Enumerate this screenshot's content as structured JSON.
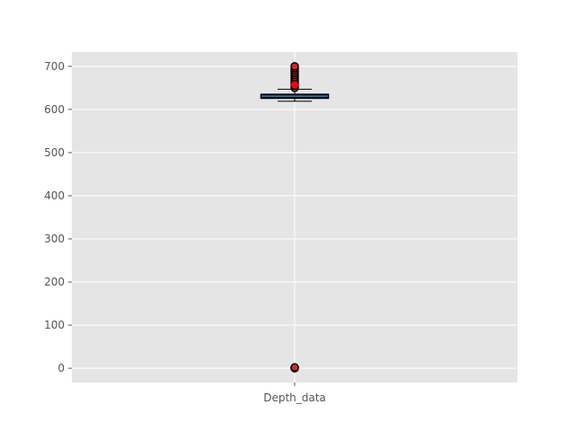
{
  "chart_data": {
    "type": "box",
    "categories": [
      "Depth_data"
    ],
    "ylim": [
      -33,
      733
    ],
    "yticks": [
      0,
      100,
      200,
      300,
      400,
      500,
      600,
      700
    ],
    "grid": true,
    "background_color": "#e5e5e5",
    "box": {
      "whisker_low": 619,
      "q1": 627,
      "median": 631,
      "q3": 634,
      "whisker_high": 647,
      "mean": 657,
      "outliers_high": [
        650,
        655,
        660,
        665,
        670,
        675,
        680,
        685,
        690,
        695,
        700
      ],
      "outliers_low": [
        0,
        1,
        2
      ]
    },
    "colors": {
      "box_edge": "#000000",
      "median": "#1f77b4",
      "mean_marker": "#ff0000",
      "flier_face": "#d62728",
      "flier_edge": "#000000",
      "grid": "#ffffff",
      "tick_text": "#555555"
    }
  }
}
